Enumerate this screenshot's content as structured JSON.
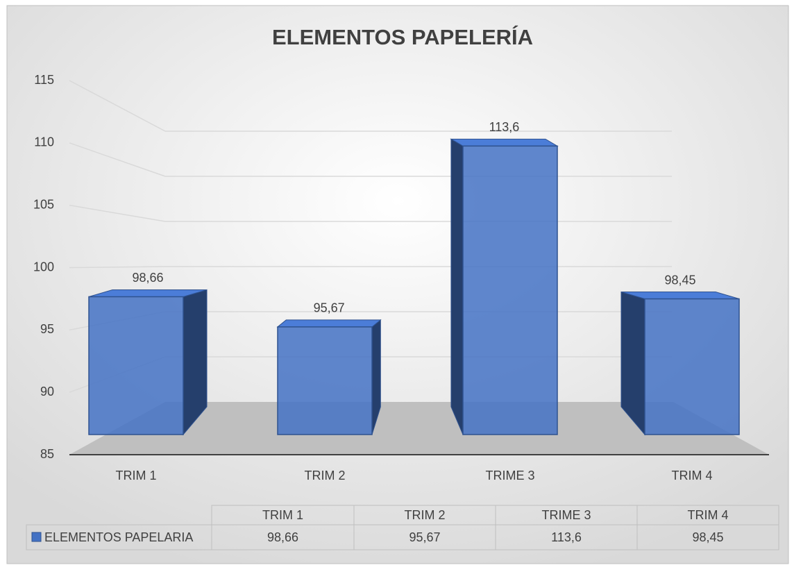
{
  "chart_data": {
    "type": "bar3d",
    "title": "ELEMENTOS PAPELERÍA",
    "categories": [
      "TRIM  1",
      "TRIM  2",
      "TRIME  3",
      "TRIM  4"
    ],
    "series": [
      {
        "name": "ELEMENTOS PAPELARIA",
        "color": "#4472c4",
        "values": [
          98.66,
          95.67,
          113.6,
          98.45
        ],
        "value_labels": [
          "98,66",
          "95,67",
          "113,6",
          "98,45"
        ]
      }
    ],
    "ylim": [
      85,
      115
    ],
    "yticks": [
      85,
      90,
      95,
      100,
      105,
      110,
      115
    ],
    "grid": true,
    "data_table": true
  }
}
